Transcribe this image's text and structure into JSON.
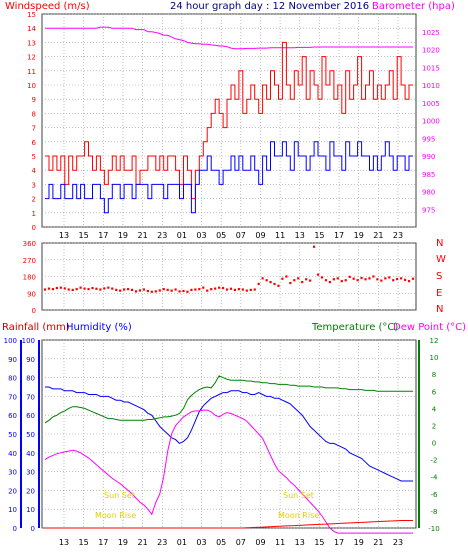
{
  "header": {
    "left": "Windspeed (m/s)",
    "center": "24 hour graph day : 12 November 2016",
    "right": "Barometer (hpa)"
  },
  "colors": {
    "wind_gust": "#ff0000",
    "wind_avg": "#0000ff",
    "barometer": "#ff00ff",
    "wind_dir": "#ff0000",
    "rain": "#ff0000",
    "humidity": "#0000ff",
    "temperature": "#008000",
    "dew_point": "#ff00ff",
    "rain_axis": "#cc0000",
    "sun_label": "#e0d000",
    "grid": "#9a9a9a"
  },
  "x_axis_labels": [
    "13",
    "15",
    "17",
    "19",
    "21",
    "23",
    "01",
    "03",
    "05",
    "07",
    "09",
    "11",
    "13",
    "15",
    "17",
    "19",
    "21",
    "23"
  ],
  "lower": {
    "rain_label": "Rainfall (mm)",
    "humidity_label": "Humidity (%)",
    "temp_label": "Temperature (°C)",
    "dew_label": "Dew Point (°C)",
    "sun_set": "Sun Set",
    "moon_rise": "Moon Rise"
  },
  "chart_data": [
    {
      "type": "line",
      "xlabel": "",
      "ylabel": "Windspeed (m/s)",
      "ylabel_right": "Barometer (hpa)",
      "ylim": [
        0,
        15
      ],
      "ylim_right": [
        970,
        1030
      ],
      "yticks": [
        0,
        1,
        2,
        3,
        4,
        5,
        6,
        7,
        8,
        9,
        10,
        11,
        12,
        13,
        14,
        15
      ],
      "yticks_right": [
        975,
        980,
        985,
        990,
        995,
        1000,
        1005,
        1010,
        1015,
        1020,
        1025
      ],
      "series": [
        {
          "key": "gust",
          "values": [
            5,
            4,
            5,
            4,
            5,
            3,
            5,
            4,
            5,
            5,
            6,
            5,
            4,
            5,
            4,
            3,
            4,
            5,
            4,
            5,
            4,
            4,
            5,
            3,
            4,
            4,
            5,
            5,
            4,
            5,
            4,
            5,
            5,
            4,
            3,
            5,
            4,
            2,
            4,
            5,
            6,
            7,
            8,
            9,
            8,
            7,
            9,
            10,
            9,
            11,
            8,
            9,
            10,
            9,
            8,
            10,
            9,
            11,
            10,
            9,
            13,
            10,
            9,
            11,
            10,
            12,
            9,
            11,
            10,
            9,
            12,
            10,
            11,
            9,
            10,
            8,
            11,
            9,
            10,
            12,
            9,
            10,
            11,
            9,
            10,
            9,
            10,
            11,
            9,
            12,
            10,
            9,
            10,
            10
          ]
        },
        {
          "key": "avg",
          "values": [
            2,
            3,
            2,
            2,
            3,
            2,
            2,
            3,
            2,
            3,
            2,
            2,
            3,
            3,
            2,
            1,
            2,
            3,
            3,
            2,
            3,
            3,
            2,
            3,
            3,
            3,
            2,
            3,
            3,
            3,
            2,
            3,
            3,
            3,
            2,
            3,
            3,
            1,
            3,
            4,
            4,
            5,
            4,
            4,
            3,
            4,
            4,
            5,
            4,
            5,
            4,
            4,
            5,
            4,
            3,
            5,
            4,
            6,
            5,
            5,
            6,
            5,
            4,
            6,
            5,
            5,
            4,
            5,
            6,
            5,
            5,
            4,
            6,
            5,
            5,
            4,
            6,
            5,
            5,
            6,
            5,
            5,
            4,
            5,
            4,
            5,
            6,
            5,
            4,
            5,
            5,
            4,
            5,
            5
          ]
        },
        {
          "key": "barometer",
          "values": [
            1026,
            1026,
            1026,
            1026,
            1026,
            1026,
            1026,
            1026,
            1026,
            1026,
            1026,
            1026,
            1026,
            1026,
            1026.3,
            1026.3,
            1026.3,
            1026,
            1026,
            1026,
            1026,
            1026,
            1026,
            1025.6,
            1025.6,
            1025.6,
            1025,
            1025,
            1024.8,
            1024.5,
            1024,
            1024,
            1023.5,
            1023,
            1022.8,
            1022.5,
            1022,
            1021.8,
            1021.6,
            1021.6,
            1021.5,
            1021.5,
            1021.3,
            1021.2,
            1021,
            1021,
            1020.8,
            1020.4,
            1020.2,
            1020.2,
            1020.2,
            1020.3,
            1020.3,
            1020.3,
            1020.4,
            1020.4,
            1020.4,
            1020.5,
            1020.5,
            1020.5,
            1020.5,
            1020.5,
            1020.5,
            1020.5,
            1020.6,
            1020.6,
            1020.6,
            1020.6,
            1020.7,
            1020.7,
            1020.7,
            1020.7,
            1020.7,
            1020.7,
            1020.7,
            1020.7,
            1020.7,
            1020.7,
            1020.7,
            1020.7,
            1020.7,
            1020.7,
            1020.7,
            1020.7,
            1020.7,
            1020.7,
            1020.7,
            1020.7,
            1020.7,
            1020.7,
            1020.7,
            1020.7,
            1020.7,
            1020.7
          ]
        }
      ]
    },
    {
      "type": "scatter",
      "ylabel": "Wind direction",
      "ylim": [
        0,
        360
      ],
      "yticks": [
        0,
        90,
        180,
        270,
        360
      ],
      "compass": [
        "N",
        "W",
        "S",
        "E",
        "N"
      ],
      "values": [
        110,
        115,
        112,
        118,
        120,
        116,
        110,
        108,
        112,
        120,
        115,
        112,
        118,
        114,
        110,
        116,
        120,
        115,
        108,
        104,
        110,
        112,
        108,
        100,
        105,
        110,
        102,
        98,
        100,
        105,
        112,
        108,
        104,
        110,
        100,
        102,
        98,
        108,
        110,
        112,
        120,
        104,
        112,
        115,
        120,
        118,
        110,
        114,
        108,
        112,
        110,
        104,
        108,
        110,
        140,
        170,
        160,
        150,
        140,
        130,
        168,
        180,
        145,
        160,
        170,
        150,
        165,
        158,
        340,
        190,
        175,
        160,
        150,
        165,
        170,
        155,
        160,
        178,
        168,
        160,
        172,
        165,
        170,
        180,
        165,
        158,
        170,
        175,
        160,
        166,
        170,
        162,
        155,
        168
      ]
    },
    {
      "type": "line",
      "ylabel": "Humidity (%)",
      "ylabel_left_outer": "Rainfall (mm)",
      "ylabel_right": "Temperature (°C)",
      "ylim": [
        0,
        100
      ],
      "ylim_rain": [
        0,
        100
      ],
      "ylim_right": [
        -10,
        12
      ],
      "yticks": [
        0,
        10,
        20,
        30,
        40,
        50,
        60,
        70,
        80,
        90,
        100
      ],
      "yticks_right": [
        -10,
        -8,
        -6,
        -4,
        -2,
        0,
        2,
        4,
        6,
        8,
        10,
        12
      ],
      "series": [
        {
          "key": "humidity",
          "values": [
            75,
            75,
            74,
            74,
            74,
            73,
            73,
            73,
            72,
            72,
            72,
            71,
            71,
            71,
            70,
            70,
            70,
            69,
            68,
            68,
            67,
            67,
            66,
            65,
            64,
            63,
            61,
            60,
            57,
            54,
            52,
            50,
            48,
            47,
            45,
            46,
            48,
            52,
            57,
            62,
            65,
            67,
            69,
            70,
            71,
            72,
            72,
            73,
            73,
            73,
            72,
            72,
            71,
            71,
            72,
            71,
            70,
            70,
            69,
            69,
            68,
            67,
            66,
            64,
            62,
            60,
            57,
            54,
            52,
            50,
            48,
            46,
            45,
            45,
            44,
            43,
            42,
            40,
            39,
            38,
            37,
            35,
            33,
            32,
            31,
            30,
            29,
            28,
            27,
            26,
            25,
            25,
            25,
            25
          ]
        },
        {
          "key": "temperature",
          "values": [
            2.3,
            2.6,
            3.0,
            3.2,
            3.5,
            3.7,
            4.0,
            4.2,
            4.2,
            4.1,
            4.0,
            3.8,
            3.6,
            3.4,
            3.2,
            3.0,
            2.8,
            2.8,
            2.7,
            2.6,
            2.6,
            2.6,
            2.6,
            2.6,
            2.6,
            2.6,
            2.7,
            2.7,
            2.8,
            2.9,
            3.0,
            3.0,
            3.1,
            3.2,
            3.4,
            4.0,
            5.0,
            5.5,
            5.9,
            6.2,
            6.4,
            6.5,
            6.4,
            7.0,
            7.8,
            7.6,
            7.4,
            7.3,
            7.3,
            7.3,
            7.3,
            7.2,
            7.2,
            7.1,
            7.1,
            7.0,
            7.0,
            6.9,
            6.9,
            6.8,
            6.8,
            6.8,
            6.7,
            6.7,
            6.6,
            6.6,
            6.6,
            6.6,
            6.5,
            6.5,
            6.5,
            6.4,
            6.4,
            6.4,
            6.4,
            6.3,
            6.3,
            6.2,
            6.2,
            6.2,
            6.2,
            6.1,
            6.1,
            6.1,
            6.0,
            6.0,
            6.0,
            6.0,
            6.0,
            6.0,
            6.0,
            6.0,
            6.0,
            6.0
          ]
        },
        {
          "key": "dew_point",
          "values": [
            -2.0,
            -1.7,
            -1.5,
            -1.3,
            -1.2,
            -1.1,
            -1.0,
            -0.9,
            -1.0,
            -1.2,
            -1.5,
            -1.8,
            -2.2,
            -2.6,
            -3.0,
            -3.4,
            -3.8,
            -4.2,
            -4.5,
            -4.8,
            -5.2,
            -5.6,
            -6.0,
            -6.5,
            -7.0,
            -7.3,
            -7.8,
            -8.4,
            -7.0,
            -6.0,
            -4.0,
            -1.0,
            1.0,
            2.0,
            2.5,
            3.0,
            3.3,
            3.6,
            3.7,
            3.7,
            3.8,
            3.8,
            3.6,
            3.2,
            3.0,
            3.3,
            3.5,
            3.4,
            3.2,
            3.0,
            2.8,
            2.5,
            2.0,
            1.5,
            1.0,
            0.5,
            -0.5,
            -1.5,
            -2.5,
            -3.3,
            -3.7,
            -4.1,
            -4.6,
            -5.0,
            -5.5,
            -6.0,
            -6.5,
            -7.0,
            -7.5,
            -8.0,
            -8.6,
            -9.3,
            -10.0,
            -10.4,
            -10.6,
            -10.6,
            -10.6,
            -10.6,
            -10.6,
            -10.6,
            -10.6,
            -10.6,
            -10.6,
            -10.6,
            -10.6,
            -10.6,
            -10.6,
            -10.6,
            -10.6,
            -10.6,
            -10.6,
            -10.6,
            -10.6,
            -10.6
          ]
        },
        {
          "key": "rainfall",
          "values": [
            0,
            0,
            0,
            0,
            0,
            0,
            0,
            0,
            0,
            0,
            0,
            0,
            0,
            0,
            0,
            0,
            0,
            0,
            0,
            0,
            0,
            0,
            0,
            0,
            0,
            0,
            0,
            0,
            0,
            0,
            0,
            0,
            0,
            0,
            0,
            0,
            0,
            0,
            0,
            0,
            0,
            0,
            0,
            0,
            0,
            0,
            0,
            0,
            0,
            0,
            0,
            0.1,
            0.2,
            0.3,
            0.4,
            0.5,
            0.6,
            0.7,
            0.8,
            0.9,
            1.0,
            1.1,
            1.2,
            1.3,
            1.4,
            1.5,
            1.6,
            1.7,
            1.8,
            1.9,
            2.0,
            2.1,
            2.2,
            2.3,
            2.4,
            2.5,
            2.6,
            2.7,
            2.8,
            2.9,
            3.0,
            3.1,
            3.2,
            3.3,
            3.4,
            3.5,
            3.6,
            3.7,
            3.8,
            3.9,
            4.0,
            4.0,
            4.0,
            4.0
          ]
        }
      ]
    }
  ]
}
